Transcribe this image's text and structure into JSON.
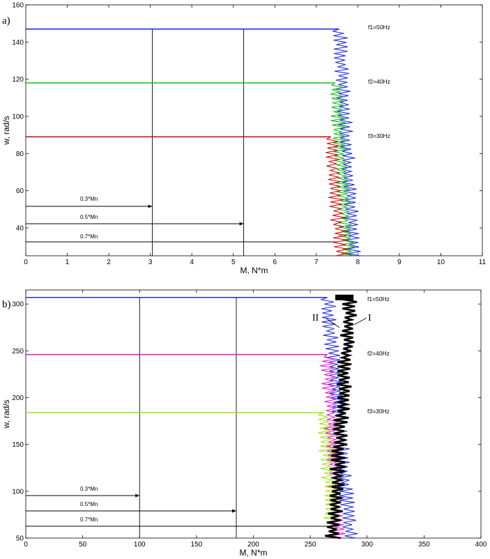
{
  "chart_data": [
    {
      "panel": "a)",
      "type": "line",
      "xlabel": "M, N*m",
      "ylabel": "w, rad/s",
      "xlim": [
        0,
        11
      ],
      "ylim": [
        25,
        160
      ],
      "xticks": [
        "0",
        "1",
        "2",
        "3",
        "4",
        "5",
        "6",
        "7",
        "8",
        "9",
        "10",
        "11"
      ],
      "yticks": [
        "40",
        "60",
        "80",
        "100",
        "120",
        "140",
        "160"
      ],
      "grid": false,
      "series": [
        {
          "name": "f1=50Hz",
          "color": "#1f2fd6",
          "speed": 147,
          "torque_start": 7.55,
          "torque_end": 7.9
        },
        {
          "name": "f2=40Hz",
          "color": "#12c112",
          "speed": 118,
          "torque_start": 7.45,
          "torque_end": 7.75
        },
        {
          "name": "f3=30Hz",
          "color": "#d01010",
          "speed": 89,
          "torque_start": 7.35,
          "torque_end": 7.6
        }
      ],
      "reference_lines": [
        {
          "label": "0.3*Mn",
          "torque": 3.05
        },
        {
          "label": "0.5*Mn",
          "torque": 5.25
        },
        {
          "label": "0.7*Mn",
          "torque": 7.5
        }
      ]
    },
    {
      "panel": "b)",
      "type": "line",
      "xlabel": "M, N*m",
      "ylabel": "w, rad/s",
      "xlim": [
        0,
        400
      ],
      "ylim": [
        50,
        315
      ],
      "xticks": [
        "0",
        "50",
        "100",
        "150",
        "200",
        "250",
        "300",
        "350",
        "400"
      ],
      "yticks": [
        "50",
        "100",
        "150",
        "200",
        "250",
        "300"
      ],
      "grid": false,
      "curve_labels": [
        "II",
        "I"
      ],
      "series": [
        {
          "name": "f1=50Hz",
          "color": "#1f2fd6",
          "speed": 307,
          "torque_start": 265,
          "torque_end": 285
        },
        {
          "name": "f2=40Hz",
          "color": "#e020d0",
          "speed": 246,
          "torque_start": 265,
          "torque_end": 275
        },
        {
          "name": "f3=30Hz",
          "color": "#a8e020",
          "speed": 184,
          "torque_start": 262,
          "torque_end": 270
        },
        {
          "name": "I",
          "color": "#000000",
          "speed": 307,
          "torque_start": 285,
          "torque_end": 270
        }
      ],
      "reference_lines": [
        {
          "label": "0.3*Mn",
          "torque": 100
        },
        {
          "label": "0.5*Mn",
          "torque": 185
        },
        {
          "label": "0.7*Mn",
          "torque": 270
        }
      ]
    }
  ]
}
